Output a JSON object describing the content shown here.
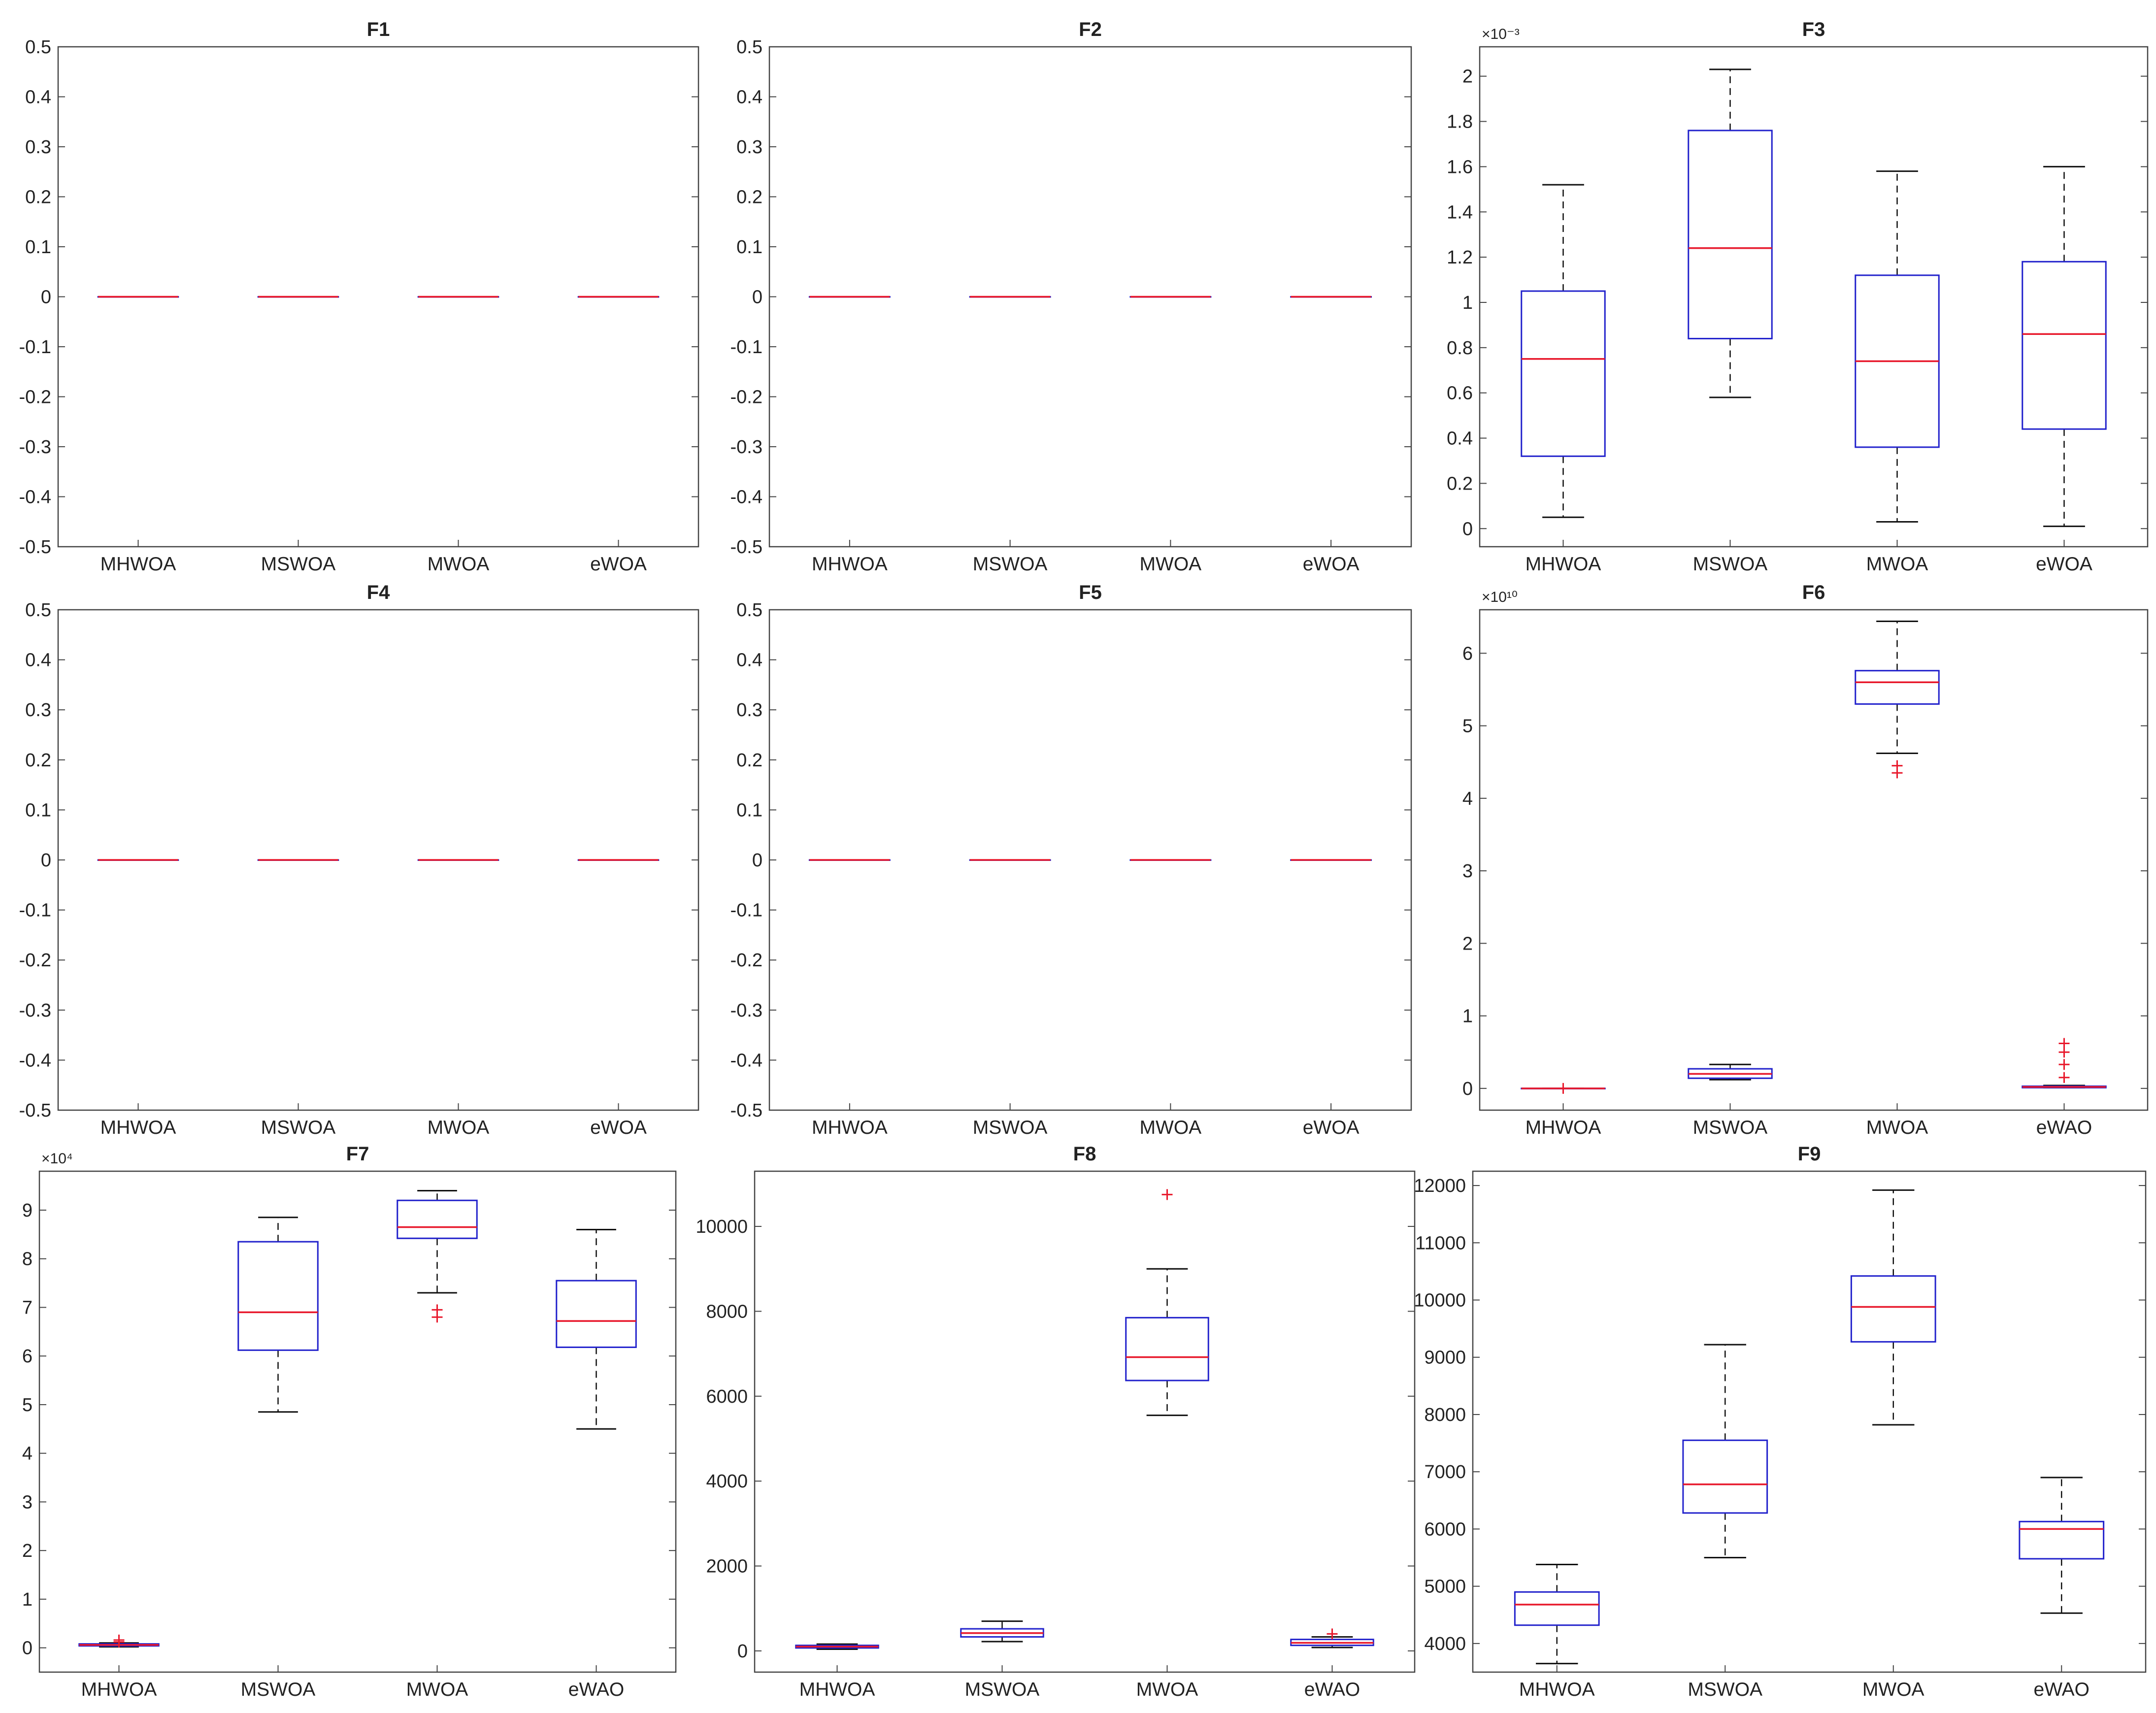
{
  "figure": "Box plots of MHWOA, MSWOA, MWOA and eWOA on benchmark functions F1-F9",
  "colors": {
    "box": "#2222cc",
    "median": "#e8192c",
    "whisker": "#111111",
    "outlier": "#e8192c",
    "axes": "#444444"
  },
  "chart_data": [
    {
      "type": "box",
      "title": "F1",
      "categories": [
        "MHWOA",
        "MSWOA",
        "MWOA",
        "eWOA"
      ],
      "ylim": [
        -0.5,
        0.5
      ],
      "yticks": [
        -0.5,
        -0.4,
        -0.3,
        -0.2,
        -0.1,
        0,
        0.1,
        0.2,
        0.3,
        0.4,
        0.5
      ],
      "ytick_labels": [
        "-0.5",
        "-0.4",
        "-0.3",
        "-0.2",
        "-0.1",
        "0",
        "0.1",
        "0.2",
        "0.3",
        "0.4",
        "0.5"
      ],
      "exponent": "",
      "boxes": [
        {
          "min": 0,
          "q1": 0,
          "median": 0,
          "q3": 0,
          "max": 0,
          "outliers": []
        },
        {
          "min": 0,
          "q1": 0,
          "median": 0,
          "q3": 0,
          "max": 0,
          "outliers": []
        },
        {
          "min": 0,
          "q1": 0,
          "median": 0,
          "q3": 0,
          "max": 0,
          "outliers": []
        },
        {
          "min": 0,
          "q1": 0,
          "median": 0,
          "q3": 0,
          "max": 0,
          "outliers": []
        }
      ]
    },
    {
      "type": "box",
      "title": "F2",
      "categories": [
        "MHWOA",
        "MSWOA",
        "MWOA",
        "eWOA"
      ],
      "ylim": [
        -0.5,
        0.5
      ],
      "yticks": [
        -0.5,
        -0.4,
        -0.3,
        -0.2,
        -0.1,
        0,
        0.1,
        0.2,
        0.3,
        0.4,
        0.5
      ],
      "ytick_labels": [
        "-0.5",
        "-0.4",
        "-0.3",
        "-0.2",
        "-0.1",
        "0",
        "0.1",
        "0.2",
        "0.3",
        "0.4",
        "0.5"
      ],
      "exponent": "",
      "boxes": [
        {
          "min": 0,
          "q1": 0,
          "median": 0,
          "q3": 0,
          "max": 0,
          "outliers": []
        },
        {
          "min": 0,
          "q1": 0,
          "median": 0,
          "q3": 0,
          "max": 0,
          "outliers": []
        },
        {
          "min": 0,
          "q1": 0,
          "median": 0,
          "q3": 0,
          "max": 0,
          "outliers": []
        },
        {
          "min": 0,
          "q1": 0,
          "median": 0,
          "q3": 0,
          "max": 0,
          "outliers": []
        }
      ]
    },
    {
      "type": "box",
      "title": "F3",
      "categories": [
        "MHWOA",
        "MSWOA",
        "MWOA",
        "eWOA"
      ],
      "ylim": [
        -0.08,
        2.13
      ],
      "yticks": [
        0,
        0.2,
        0.4,
        0.6,
        0.8,
        1,
        1.2,
        1.4,
        1.6,
        1.8,
        2
      ],
      "ytick_labels": [
        "0",
        "0.2",
        "0.4",
        "0.6",
        "0.8",
        "1",
        "1.2",
        "1.4",
        "1.6",
        "1.8",
        "2"
      ],
      "exponent": "×10⁻³",
      "boxes": [
        {
          "min": 0.05,
          "q1": 0.32,
          "median": 0.75,
          "q3": 1.05,
          "max": 1.52,
          "outliers": []
        },
        {
          "min": 0.58,
          "q1": 0.84,
          "median": 1.24,
          "q3": 1.76,
          "max": 2.03,
          "outliers": []
        },
        {
          "min": 0.03,
          "q1": 0.36,
          "median": 0.74,
          "q3": 1.12,
          "max": 1.58,
          "outliers": []
        },
        {
          "min": 0.01,
          "q1": 0.44,
          "median": 0.86,
          "q3": 1.18,
          "max": 1.6,
          "outliers": []
        }
      ]
    },
    {
      "type": "box",
      "title": "F4",
      "categories": [
        "MHWOA",
        "MSWOA",
        "MWOA",
        "eWOA"
      ],
      "ylim": [
        -0.5,
        0.5
      ],
      "yticks": [
        -0.5,
        -0.4,
        -0.3,
        -0.2,
        -0.1,
        0,
        0.1,
        0.2,
        0.3,
        0.4,
        0.5
      ],
      "ytick_labels": [
        "-0.5",
        "-0.4",
        "-0.3",
        "-0.2",
        "-0.1",
        "0",
        "0.1",
        "0.2",
        "0.3",
        "0.4",
        "0.5"
      ],
      "exponent": "",
      "boxes": [
        {
          "min": 0,
          "q1": 0,
          "median": 0,
          "q3": 0,
          "max": 0,
          "outliers": []
        },
        {
          "min": 0,
          "q1": 0,
          "median": 0,
          "q3": 0,
          "max": 0,
          "outliers": []
        },
        {
          "min": 0,
          "q1": 0,
          "median": 0,
          "q3": 0,
          "max": 0,
          "outliers": []
        },
        {
          "min": 0,
          "q1": 0,
          "median": 0,
          "q3": 0,
          "max": 0,
          "outliers": []
        }
      ]
    },
    {
      "type": "box",
      "title": "F5",
      "categories": [
        "MHWOA",
        "MSWOA",
        "MWOA",
        "eWOA"
      ],
      "ylim": [
        -0.5,
        0.5
      ],
      "yticks": [
        -0.5,
        -0.4,
        -0.3,
        -0.2,
        -0.1,
        0,
        0.1,
        0.2,
        0.3,
        0.4,
        0.5
      ],
      "ytick_labels": [
        "-0.5",
        "-0.4",
        "-0.3",
        "-0.2",
        "-0.1",
        "0",
        "0.1",
        "0.2",
        "0.3",
        "0.4",
        "0.5"
      ],
      "exponent": "",
      "boxes": [
        {
          "min": 0,
          "q1": 0,
          "median": 0,
          "q3": 0,
          "max": 0,
          "outliers": []
        },
        {
          "min": 0,
          "q1": 0,
          "median": 0,
          "q3": 0,
          "max": 0,
          "outliers": []
        },
        {
          "min": 0,
          "q1": 0,
          "median": 0,
          "q3": 0,
          "max": 0,
          "outliers": []
        },
        {
          "min": 0,
          "q1": 0,
          "median": 0,
          "q3": 0,
          "max": 0,
          "outliers": []
        }
      ]
    },
    {
      "type": "box",
      "title": "F6",
      "categories": [
        "MHWOA",
        "MSWOA",
        "MWOA",
        "eWAO"
      ],
      "ylim": [
        -0.3,
        6.6
      ],
      "yticks": [
        0,
        1,
        2,
        3,
        4,
        5,
        6
      ],
      "ytick_labels": [
        "0",
        "1",
        "2",
        "3",
        "4",
        "5",
        "6"
      ],
      "exponent": "×10¹⁰",
      "boxes": [
        {
          "min": 0,
          "q1": 0,
          "median": 0,
          "q3": 0,
          "max": 0,
          "outliers": [
            0
          ]
        },
        {
          "min": 0.12,
          "q1": 0.14,
          "median": 0.2,
          "q3": 0.27,
          "max": 0.33,
          "outliers": []
        },
        {
          "min": 4.62,
          "q1": 5.3,
          "median": 5.6,
          "q3": 5.76,
          "max": 6.44,
          "outliers": [
            4.45,
            4.35
          ]
        },
        {
          "min": 0.01,
          "q1": 0.01,
          "median": 0.02,
          "q3": 0.03,
          "max": 0.04,
          "outliers": [
            0.62,
            0.5,
            0.33,
            0.15
          ]
        }
      ]
    },
    {
      "type": "box",
      "title": "F7",
      "categories": [
        "MHWOA",
        "MSWOA",
        "MWOA",
        "eWAO"
      ],
      "ylim": [
        -0.5,
        9.8
      ],
      "yticks": [
        0,
        1,
        2,
        3,
        4,
        5,
        6,
        7,
        8,
        9
      ],
      "ytick_labels": [
        "0",
        "1",
        "2",
        "3",
        "4",
        "5",
        "6",
        "7",
        "8",
        "9"
      ],
      "exponent": "×10⁴",
      "boxes": [
        {
          "min": 0.02,
          "q1": 0.04,
          "median": 0.06,
          "q3": 0.08,
          "max": 0.1,
          "outliers": [
            0.12,
            0.16
          ]
        },
        {
          "min": 4.85,
          "q1": 6.12,
          "median": 6.9,
          "q3": 8.35,
          "max": 8.85,
          "outliers": []
        },
        {
          "min": 7.3,
          "q1": 8.42,
          "median": 8.65,
          "q3": 9.2,
          "max": 9.4,
          "outliers": [
            6.95,
            6.8
          ]
        },
        {
          "min": 4.5,
          "q1": 6.18,
          "median": 6.72,
          "q3": 7.55,
          "max": 8.6,
          "outliers": []
        }
      ]
    },
    {
      "type": "box",
      "title": "F8",
      "categories": [
        "MHWOA",
        "MSWOA",
        "MWOA",
        "eWAO"
      ],
      "ylim": [
        -500,
        11300
      ],
      "yticks": [
        0,
        2000,
        4000,
        6000,
        8000,
        10000
      ],
      "ytick_labels": [
        "0",
        "2000",
        "4000",
        "6000",
        "8000",
        "10000"
      ],
      "exponent": "",
      "boxes": [
        {
          "min": 40,
          "q1": 70,
          "median": 100,
          "q3": 130,
          "max": 160,
          "outliers": []
        },
        {
          "min": 220,
          "q1": 330,
          "median": 420,
          "q3": 520,
          "max": 700,
          "outliers": []
        },
        {
          "min": 5550,
          "q1": 6370,
          "median": 6920,
          "q3": 7850,
          "max": 9000,
          "outliers": [
            10750
          ]
        },
        {
          "min": 80,
          "q1": 130,
          "median": 190,
          "q3": 270,
          "max": 330,
          "outliers": [
            400
          ]
        }
      ]
    },
    {
      "type": "box",
      "title": "F9",
      "categories": [
        "MHWOA",
        "MSWOA",
        "MWOA",
        "eWAO"
      ],
      "ylim": [
        3500,
        12250
      ],
      "yticks": [
        4000,
        5000,
        6000,
        7000,
        8000,
        9000,
        10000,
        11000,
        12000
      ],
      "ytick_labels": [
        "4000",
        "5000",
        "6000",
        "7000",
        "8000",
        "9000",
        "10000",
        "11000",
        "12000"
      ],
      "exponent": "",
      "boxes": [
        {
          "min": 3650,
          "q1": 4320,
          "median": 4680,
          "q3": 4900,
          "max": 5380,
          "outliers": []
        },
        {
          "min": 5500,
          "q1": 6280,
          "median": 6780,
          "q3": 7550,
          "max": 9220,
          "outliers": []
        },
        {
          "min": 7820,
          "q1": 9270,
          "median": 9880,
          "q3": 10420,
          "max": 11920,
          "outliers": []
        },
        {
          "min": 4530,
          "q1": 5480,
          "median": 6000,
          "q3": 6130,
          "max": 6900,
          "outliers": []
        }
      ]
    }
  ]
}
